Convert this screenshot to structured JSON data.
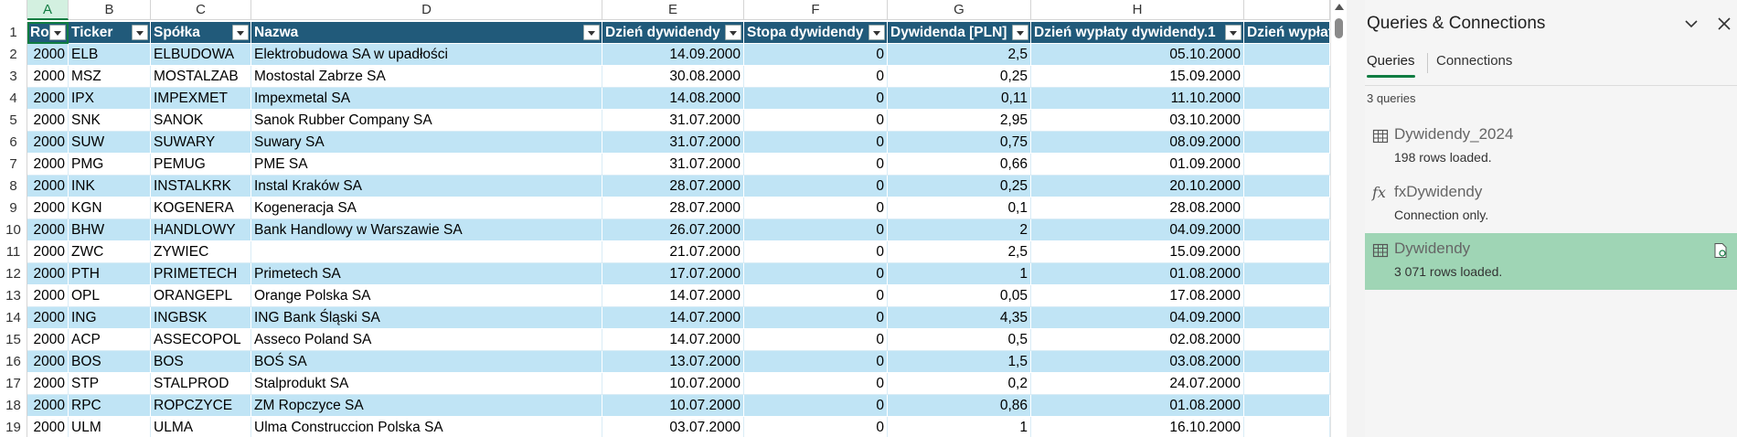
{
  "sheet": {
    "columns": [
      "A",
      "B",
      "C",
      "D",
      "E",
      "F",
      "G",
      "H",
      ""
    ],
    "headers": [
      "Rok",
      "Ticker",
      "Spółka",
      "Nazwa",
      "Dzień dywidendy",
      "Stopa dywidendy",
      "Dywidenda [PLN]",
      "Dzień wypłaty dywidendy.1",
      "Dzień wypłat"
    ],
    "rows": [
      [
        "2",
        "2000",
        "ELB",
        "ELBUDOWA",
        "Elektrobudowa SA  w upadłości",
        "14.09.2000",
        "0",
        "2,5",
        "05.10.2000"
      ],
      [
        "3",
        "2000",
        "MSZ",
        "MOSTALZAB",
        "Mostostal Zabrze SA",
        "30.08.2000",
        "0",
        "0,25",
        "15.09.2000"
      ],
      [
        "4",
        "2000",
        "IPX",
        "IMPEXMET",
        "Impexmetal SA",
        "14.08.2000",
        "0",
        "0,11",
        "11.10.2000"
      ],
      [
        "5",
        "2000",
        "SNK",
        "SANOK",
        "Sanok Rubber Company SA",
        "31.07.2000",
        "0",
        "2,95",
        "03.10.2000"
      ],
      [
        "6",
        "2000",
        "SUW",
        "SUWARY",
        "Suwary SA",
        "31.07.2000",
        "0",
        "0,75",
        "08.09.2000"
      ],
      [
        "7",
        "2000",
        "PMG",
        "PEMUG",
        "PME SA",
        "31.07.2000",
        "0",
        "0,66",
        "01.09.2000"
      ],
      [
        "8",
        "2000",
        "INK",
        "INSTALKRK",
        "Instal Kraków SA",
        "28.07.2000",
        "0",
        "0,25",
        "20.10.2000"
      ],
      [
        "9",
        "2000",
        "KGN",
        "KOGENERA",
        "Kogeneracja SA",
        "28.07.2000",
        "0",
        "0,1",
        "28.08.2000"
      ],
      [
        "10",
        "2000",
        "BHW",
        "HANDLOWY",
        "Bank Handlowy w Warszawie SA",
        "26.07.2000",
        "0",
        "2",
        "04.09.2000"
      ],
      [
        "11",
        "2000",
        "ZWC",
        "ZYWIEC",
        "",
        "21.07.2000",
        "0",
        "2,5",
        "15.09.2000"
      ],
      [
        "12",
        "2000",
        "PTH",
        "PRIMETECH",
        "Primetech SA",
        "17.07.2000",
        "0",
        "1",
        "01.08.2000"
      ],
      [
        "13",
        "2000",
        "OPL",
        "ORANGEPL",
        "Orange Polska SA",
        "14.07.2000",
        "0",
        "0,05",
        "17.08.2000"
      ],
      [
        "14",
        "2000",
        "ING",
        "INGBSK",
        "ING Bank Śląski SA",
        "14.07.2000",
        "0",
        "4,35",
        "04.09.2000"
      ],
      [
        "15",
        "2000",
        "ACP",
        "ASSECOPOL",
        "Asseco Poland SA",
        "14.07.2000",
        "0",
        "0,5",
        "02.08.2000"
      ],
      [
        "16",
        "2000",
        "BOS",
        "BOS",
        "BOŚ SA",
        "13.07.2000",
        "0",
        "1,5",
        "03.08.2000"
      ],
      [
        "17",
        "2000",
        "STP",
        "STALPROD",
        "Stalprodukt SA",
        "10.07.2000",
        "0",
        "0,2",
        "24.07.2000"
      ],
      [
        "18",
        "2000",
        "RPC",
        "ROPCZYCE",
        "ZM Ropczyce SA",
        "10.07.2000",
        "0",
        "0,86",
        "01.08.2000"
      ],
      [
        "19",
        "2000",
        "ULM",
        "ULMA",
        "Ulma Construccion Polska SA",
        "03.07.2000",
        "0",
        "1",
        "16.10.2000"
      ]
    ]
  },
  "pane": {
    "title": "Queries & Connections",
    "tabs": [
      "Queries",
      "Connections"
    ],
    "count": "3 queries",
    "queries": [
      {
        "name": "Dywidendy_2024",
        "status": "198 rows loaded.",
        "icon": "table-icon"
      },
      {
        "name": "fxDywidendy",
        "status": "Connection only.",
        "icon": "fx-icon"
      },
      {
        "name": "Dywidendy",
        "status": "3 071 rows loaded.",
        "icon": "table-icon"
      }
    ],
    "fx_symbol": "fx"
  },
  "colors": {
    "accent": "#107c41",
    "header": "#215a7a",
    "band": "#c0e4f5",
    "selected": "#9fd5b5"
  }
}
